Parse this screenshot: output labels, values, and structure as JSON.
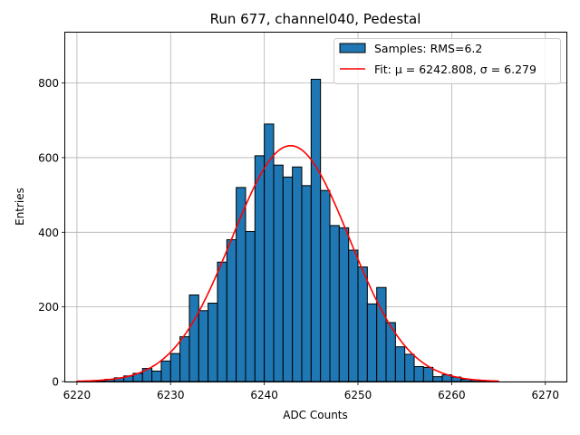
{
  "chart_data": {
    "type": "bar",
    "title": "Run 677, channel040, Pedestal",
    "xlabel": "ADC Counts",
    "ylabel": "Entries",
    "xlim": [
      6218.75,
      6272.25
    ],
    "ylim": [
      0,
      935
    ],
    "xticks": [
      6220,
      6230,
      6240,
      6250,
      6260,
      6270
    ],
    "yticks": [
      0,
      200,
      400,
      600,
      800
    ],
    "grid": true,
    "legend_position": "top-right",
    "histogram": {
      "name": "Samples: RMS=6.2",
      "color": "#1f77b4",
      "bin_edges": [
        6220,
        6221,
        6222,
        6223,
        6224,
        6225,
        6226,
        6227,
        6228,
        6229,
        6230,
        6231,
        6232,
        6233,
        6234,
        6235,
        6236,
        6237,
        6238,
        6239,
        6240,
        6241,
        6242,
        6243,
        6244,
        6245,
        6246,
        6247,
        6248,
        6249,
        6250,
        6251,
        6252,
        6253,
        6254,
        6255,
        6256,
        6257,
        6258,
        6259,
        6260,
        6261,
        6262,
        6263,
        6264,
        6265
      ],
      "counts": [
        1,
        2,
        3,
        6,
        10,
        15,
        22,
        35,
        28,
        55,
        75,
        120,
        232,
        190,
        210,
        320,
        380,
        520,
        402,
        605,
        690,
        580,
        548,
        575,
        525,
        810,
        512,
        418,
        412,
        352,
        307,
        208,
        252,
        158,
        93,
        73,
        40,
        38,
        13,
        18,
        12,
        6,
        4,
        2,
        1
      ]
    },
    "fit": {
      "name": "Fit: μ = 6242.808, σ = 6.279",
      "color": "#ff0000",
      "mu": 6242.808,
      "sigma": 6.279,
      "amplitude": 632,
      "x_range": [
        6220,
        6265
      ]
    }
  }
}
